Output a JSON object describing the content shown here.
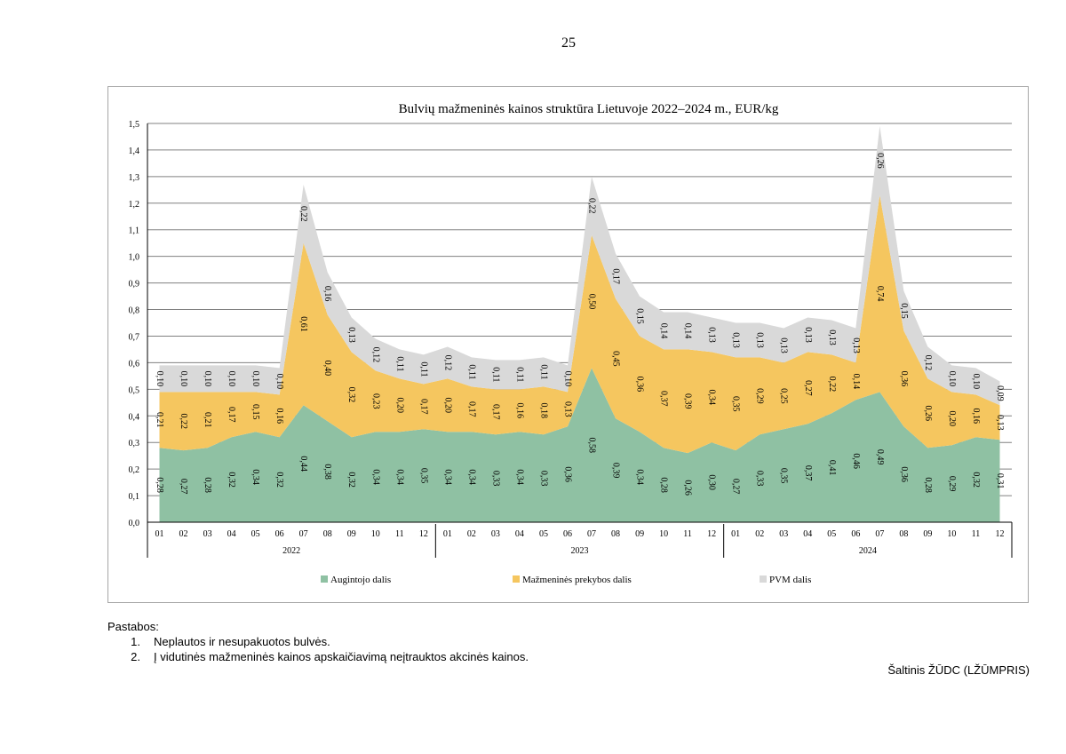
{
  "page": {
    "number": "25"
  },
  "notes": {
    "heading": "Pastabos:",
    "items": [
      {
        "num": "1.",
        "text": "Neplautos ir nesupakuotos bulvės."
      },
      {
        "num": "2.",
        "text": "Į vidutinės mažmeninės kainos apskaičiavimą neįtrauktos akcinės kainos."
      }
    ]
  },
  "source": "Šaltinis ŽŪDC (LŽŪMPRIS)",
  "colors": {
    "grower": "#8fc1a3",
    "retail": "#f5c65f",
    "vat": "#d9d9d9",
    "grid": "#808080"
  },
  "chart_data": {
    "type": "area",
    "stacked": true,
    "title": "Bulvių mažmeninės kainos struktūra Lietuvoje 2022–2024 m., EUR/kg",
    "ylim": [
      0,
      1.5
    ],
    "yticks": [
      "0,0",
      "0,1",
      "0,2",
      "0,3",
      "0,4",
      "0,5",
      "0,6",
      "0,7",
      "0,8",
      "0,9",
      "1,0",
      "1,1",
      "1,2",
      "1,3",
      "1,4",
      "1,5"
    ],
    "months": [
      "01",
      "02",
      "03",
      "04",
      "05",
      "06",
      "07",
      "08",
      "09",
      "10",
      "11",
      "12",
      "01",
      "02",
      "03",
      "04",
      "05",
      "06",
      "07",
      "08",
      "09",
      "10",
      "11",
      "12",
      "01",
      "02",
      "03",
      "04",
      "05",
      "06",
      "07",
      "08",
      "09",
      "10",
      "11",
      "12"
    ],
    "years": [
      "2022",
      "2023",
      "2024"
    ],
    "legend_position": "bottom",
    "series": [
      {
        "name": "Augintojo dalis",
        "color": "#8fc1a3",
        "values": [
          0.28,
          0.27,
          0.28,
          0.32,
          0.34,
          0.32,
          0.44,
          0.38,
          0.32,
          0.34,
          0.34,
          0.35,
          0.34,
          0.34,
          0.33,
          0.34,
          0.33,
          0.36,
          0.58,
          0.39,
          0.34,
          0.28,
          0.26,
          0.3,
          0.27,
          0.33,
          0.35,
          0.37,
          0.41,
          0.46,
          0.49,
          0.36,
          0.28,
          0.29,
          0.32,
          0.31
        ],
        "labels": [
          "0,28",
          "0,27",
          "0,28",
          "0,32",
          "0,34",
          "0,32",
          "0,44",
          "0,38",
          "0,32",
          "0,34",
          "0,34",
          "0,35",
          "0,34",
          "0,34",
          "0,33",
          "0,34",
          "0,33",
          "0,36",
          "0,58",
          "0,39",
          "0,34",
          "0,28",
          "0,26",
          "0,30",
          "0,27",
          "0,33",
          "0,35",
          "0,37",
          "0,41",
          "0,46",
          "0,49",
          "0,36",
          "0,28",
          "0,29",
          "0,32",
          "0,31"
        ]
      },
      {
        "name": "Mažmeninės prekybos dalis",
        "color": "#f5c65f",
        "values": [
          0.21,
          0.22,
          0.21,
          0.17,
          0.15,
          0.16,
          0.61,
          0.4,
          0.32,
          0.23,
          0.2,
          0.17,
          0.2,
          0.17,
          0.17,
          0.16,
          0.18,
          0.13,
          0.5,
          0.45,
          0.36,
          0.37,
          0.39,
          0.34,
          0.35,
          0.29,
          0.25,
          0.27,
          0.22,
          0.14,
          0.74,
          0.36,
          0.26,
          0.2,
          0.16,
          0.13
        ],
        "labels": [
          "0,21",
          "0,22",
          "0,21",
          "0,17",
          "0,15",
          "0,16",
          "0,61",
          "0,40",
          "0,32",
          "0,23",
          "0,20",
          "0,17",
          "0,20",
          "0,17",
          "0,17",
          "0,16",
          "0,18",
          "0,13",
          "0,50",
          "0,45",
          "0,36",
          "0,37",
          "0,39",
          "0,34",
          "0,35",
          "0,29",
          "0,25",
          "0,27",
          "0,22",
          "0,14",
          "0,74",
          "0,36",
          "0,26",
          "0,20",
          "0,16",
          "0,13"
        ]
      },
      {
        "name": "PVM dalis",
        "color": "#d9d9d9",
        "values": [
          0.1,
          0.1,
          0.1,
          0.1,
          0.1,
          0.1,
          0.22,
          0.16,
          0.13,
          0.12,
          0.11,
          0.11,
          0.12,
          0.11,
          0.11,
          0.11,
          0.11,
          0.1,
          0.22,
          0.17,
          0.15,
          0.14,
          0.14,
          0.13,
          0.13,
          0.13,
          0.13,
          0.13,
          0.13,
          0.13,
          0.26,
          0.15,
          0.12,
          0.1,
          0.1,
          0.09
        ],
        "labels": [
          "0,10",
          "0,10",
          "0,10",
          "0,10",
          "0,10",
          "0,10",
          "0,22",
          "0,16",
          "0,13",
          "0,12",
          "0,11",
          "0,11",
          "0,12",
          "0,11",
          "0,11",
          "0,11",
          "0,11",
          "0,10",
          "0,22",
          "0,17",
          "0,15",
          "0,14",
          "0,14",
          "0,13",
          "0,13",
          "0,13",
          "0,13",
          "0,13",
          "0,13",
          "0,13",
          "0,26",
          "0,15",
          "0,12",
          "0,10",
          "0,10",
          "0,09"
        ]
      }
    ]
  }
}
